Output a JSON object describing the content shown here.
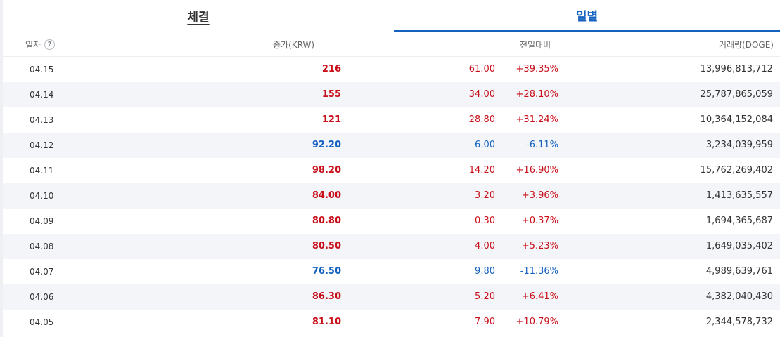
{
  "tabs": {
    "trades": "체결",
    "daily": "일별"
  },
  "columns": {
    "date": "일자",
    "help": "?",
    "close": "종가(KRW)",
    "change": "전일대비",
    "volume": "거래량(DOGE)"
  },
  "colors": {
    "up": "#c8101b",
    "down": "#1561c0",
    "active_tab": "#1561c0"
  },
  "rows": [
    {
      "date": "04.15",
      "close": "216",
      "diff": "61.00",
      "pct": "+39.35%",
      "volume": "13,996,813,712",
      "trend": "up"
    },
    {
      "date": "04.14",
      "close": "155",
      "diff": "34.00",
      "pct": "+28.10%",
      "volume": "25,787,865,059",
      "trend": "up"
    },
    {
      "date": "04.13",
      "close": "121",
      "diff": "28.80",
      "pct": "+31.24%",
      "volume": "10,364,152,084",
      "trend": "up"
    },
    {
      "date": "04.12",
      "close": "92.20",
      "diff": "6.00",
      "pct": "-6.11%",
      "volume": "3,234,039,959",
      "trend": "down"
    },
    {
      "date": "04.11",
      "close": "98.20",
      "diff": "14.20",
      "pct": "+16.90%",
      "volume": "15,762,269,402",
      "trend": "up"
    },
    {
      "date": "04.10",
      "close": "84.00",
      "diff": "3.20",
      "pct": "+3.96%",
      "volume": "1,413,635,557",
      "trend": "up"
    },
    {
      "date": "04.09",
      "close": "80.80",
      "diff": "0.30",
      "pct": "+0.37%",
      "volume": "1,694,365,687",
      "trend": "up"
    },
    {
      "date": "04.08",
      "close": "80.50",
      "diff": "4.00",
      "pct": "+5.23%",
      "volume": "1,649,035,402",
      "trend": "up"
    },
    {
      "date": "04.07",
      "close": "76.50",
      "diff": "9.80",
      "pct": "-11.36%",
      "volume": "4,989,639,761",
      "trend": "down"
    },
    {
      "date": "04.06",
      "close": "86.30",
      "diff": "5.20",
      "pct": "+6.41%",
      "volume": "4,382,040,430",
      "trend": "up"
    },
    {
      "date": "04.05",
      "close": "81.10",
      "diff": "7.90",
      "pct": "+10.79%",
      "volume": "2,344,578,732",
      "trend": "up"
    }
  ]
}
